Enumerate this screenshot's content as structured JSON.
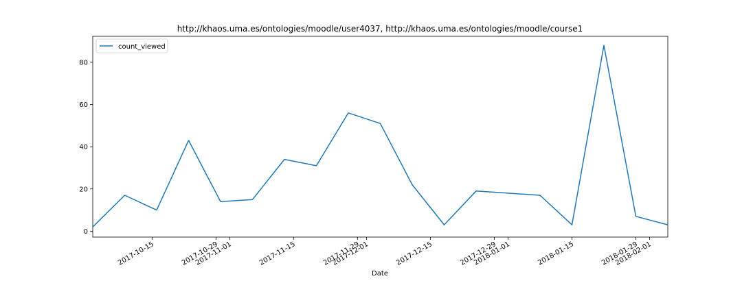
{
  "chart_data": {
    "type": "line",
    "title": "http://khaos.uma.es/ontologies/moodle/user4037, http://khaos.uma.es/ontologies/moodle/course1",
    "xlabel": "Date",
    "ylabel": "",
    "x": [
      "2017-10-02",
      "2017-10-09",
      "2017-10-16",
      "2017-10-23",
      "2017-10-30",
      "2017-11-06",
      "2017-11-13",
      "2017-11-20",
      "2017-11-27",
      "2017-12-04",
      "2017-12-11",
      "2017-12-18",
      "2017-12-25",
      "2018-01-08",
      "2018-01-15",
      "2018-01-22",
      "2018-01-29",
      "2018-02-05"
    ],
    "series": [
      {
        "name": "count_viewed",
        "values": [
          2,
          17,
          10,
          43,
          14,
          15,
          34,
          31,
          56,
          51,
          22,
          3,
          19,
          17,
          3,
          88,
          7,
          3
        ],
        "color": "#1f77b4"
      }
    ],
    "xlim": [
      "2017-10-02",
      "2018-02-05"
    ],
    "ylim": [
      -2.8,
      92.3
    ],
    "x_ticks": [
      {
        "date": "2017-10-15",
        "label": "2017-10-15"
      },
      {
        "date": "2017-10-29",
        "label": "2017-10-29"
      },
      {
        "date": "2017-11-01",
        "label": "2017-11-01"
      },
      {
        "date": "2017-11-15",
        "label": "2017-11-15"
      },
      {
        "date": "2017-11-29",
        "label": "2017-11-29"
      },
      {
        "date": "2017-12-01",
        "label": "2017-12-01"
      },
      {
        "date": "2017-12-15",
        "label": "2017-12-15"
      },
      {
        "date": "2017-12-29",
        "label": "2017-12-29"
      },
      {
        "date": "2018-01-01",
        "label": "2018-01-01"
      },
      {
        "date": "2018-01-15",
        "label": "2018-01-15"
      },
      {
        "date": "2018-01-29",
        "label": "2018-01-29"
      },
      {
        "date": "2018-02-01",
        "label": "2018-02-01"
      }
    ],
    "y_ticks": [
      0,
      20,
      40,
      60,
      80
    ],
    "grid": false,
    "legend": "top-left"
  }
}
